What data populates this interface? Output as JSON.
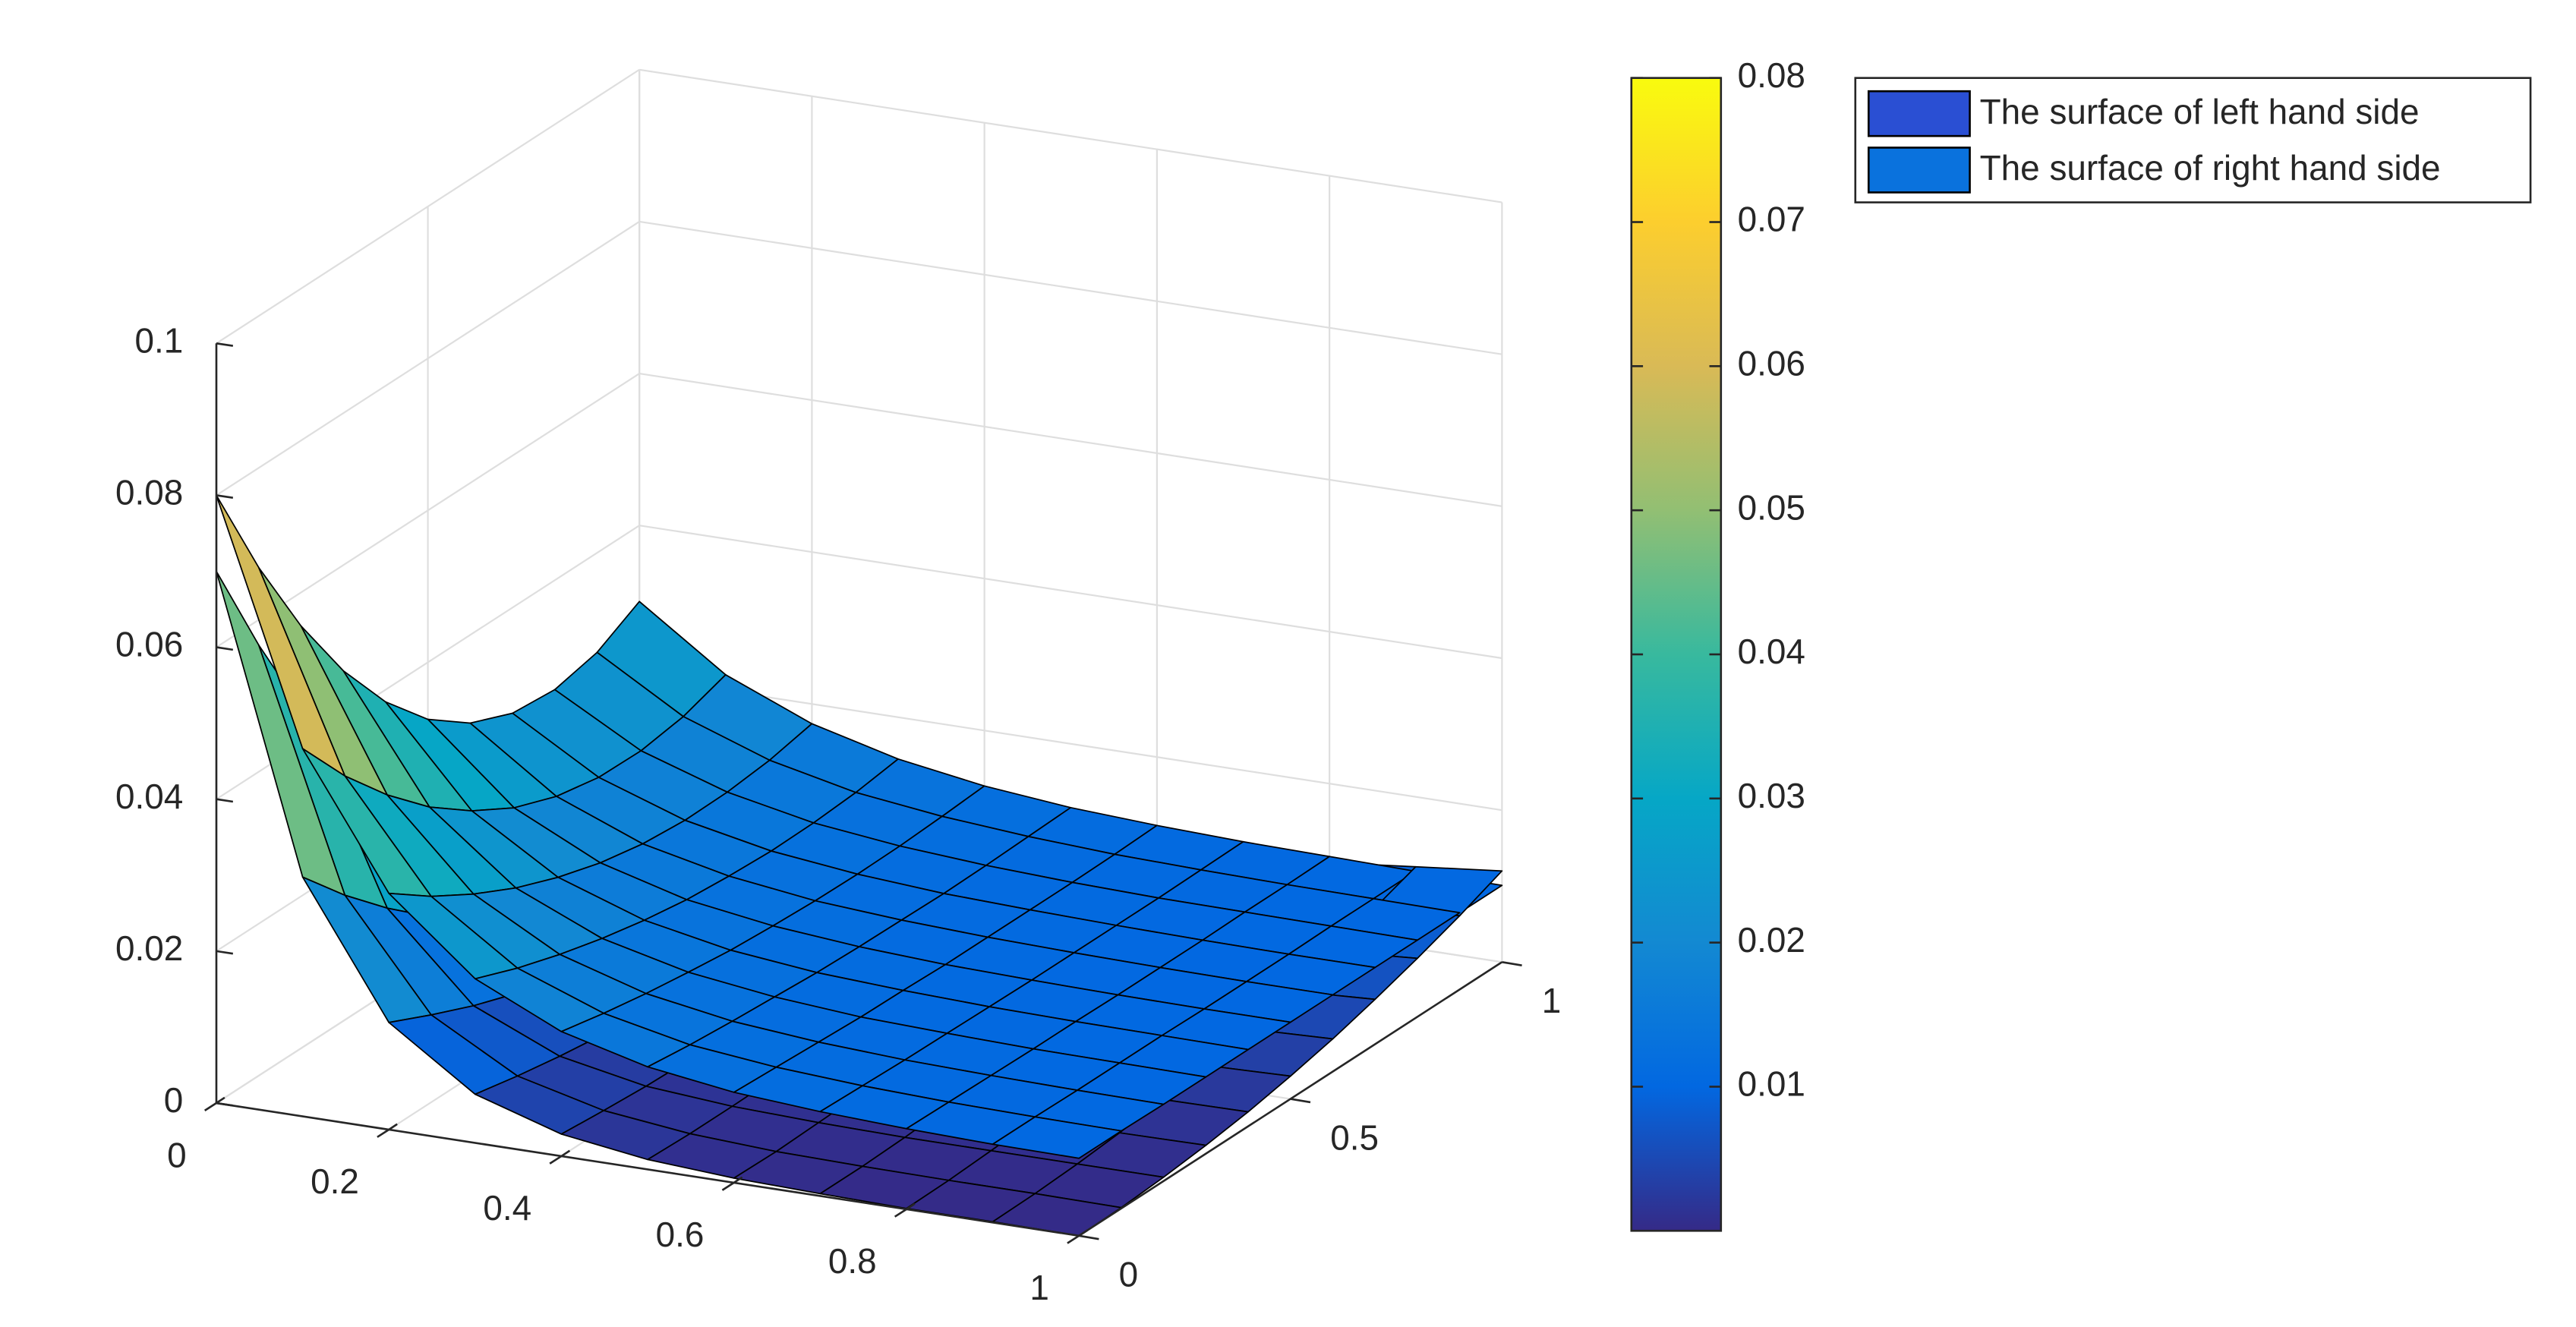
{
  "chart_data": {
    "type": "surface",
    "x": [
      0,
      0.1,
      0.2,
      0.3,
      0.4,
      0.5,
      0.6,
      0.7,
      0.8,
      0.9,
      1
    ],
    "y": [
      0,
      0.1,
      0.2,
      0.3,
      0.4,
      0.5,
      0.6,
      0.7,
      0.8,
      0.9,
      1
    ],
    "series": [
      {
        "name": "The surface of left hand side",
        "color": "#2a4fd3",
        "z": [
          [
            0.07,
            0.0315,
            0.0141,
            0.0064,
            0.0029,
            0.0013,
            0.0006,
            0.0003,
            0.0001,
            0.0001,
            0
          ],
          [
            0.0567,
            0.0255,
            0.0115,
            0.0052,
            0.0024,
            0.0011,
            0.0005,
            0.0003,
            0.0002,
            0.0002,
            0.0001
          ],
          [
            0.0448,
            0.0202,
            0.0091,
            0.0042,
            0.002,
            0.0011,
            0.0007,
            0.0005,
            0.0005,
            0.0005,
            0.0005
          ],
          [
            0.0343,
            0.0155,
            0.0071,
            0.0034,
            0.0018,
            0.0012,
            0.0009,
            0.0009,
            0.0009,
            0.001,
            0.0011
          ],
          [
            0.0252,
            0.0115,
            0.0055,
            0.0029,
            0.0018,
            0.0014,
            0.0014,
            0.0014,
            0.0016,
            0.0018,
            0.0019
          ],
          [
            0.0175,
            0.0082,
            0.0041,
            0.0025,
            0.0019,
            0.0018,
            0.0019,
            0.0022,
            0.0024,
            0.0027,
            0.003
          ],
          [
            0.0112,
            0.0055,
            0.0031,
            0.0023,
            0.0022,
            0.0024,
            0.0027,
            0.0031,
            0.0035,
            0.0039,
            0.0043
          ],
          [
            0.0063,
            0.0034,
            0.0025,
            0.0023,
            0.0026,
            0.0031,
            0.0036,
            0.0041,
            0.0047,
            0.0053,
            0.0059
          ],
          [
            0.0028,
            0.002,
            0.0021,
            0.0026,
            0.0032,
            0.0039,
            0.0046,
            0.0054,
            0.0061,
            0.0069,
            0.0077
          ],
          [
            0.0007,
            0.0013,
            0.0021,
            0.003,
            0.0039,
            0.0049,
            0.0058,
            0.0068,
            0.0078,
            0.0088,
            0.0097
          ],
          [
            0,
            0.0012,
            0.0024,
            0.0036,
            0.0048,
            0.006,
            0.0072,
            0.0084,
            0.0096,
            0.0108,
            0.012
          ]
        ]
      },
      {
        "name": "The surface of right hand side",
        "color": "#0a72dd",
        "z": [
          [
            0.08,
            0.0484,
            0.0311,
            0.0216,
            0.0164,
            0.0135,
            0.0119,
            0.0111,
            0.0106,
            0.0103,
            0.0102
          ],
          [
            0.0669,
            0.0412,
            0.0271,
            0.0194,
            0.0152,
            0.0128,
            0.0116,
            0.0109,
            0.0105,
            0.0103,
            0.0102
          ],
          [
            0.0556,
            0.0351,
            0.0238,
            0.0176,
            0.0142,
            0.0123,
            0.0113,
            0.0107,
            0.0104,
            0.0102,
            0.0101
          ],
          [
            0.0461,
            0.0299,
            0.021,
            0.0161,
            0.0134,
            0.0119,
            0.011,
            0.0106,
            0.0103,
            0.0102,
            0.0101
          ],
          [
            0.0384,
            0.0258,
            0.0188,
            0.0149,
            0.0127,
            0.0115,
            0.0109,
            0.0105,
            0.0103,
            0.0102,
            0.0101
          ],
          [
            0.0325,
            0.0226,
            0.0171,
            0.014,
            0.0123,
            0.0113,
            0.0107,
            0.0104,
            0.0102,
            0.0101,
            0.0101
          ],
          [
            0.0284,
            0.0205,
            0.016,
            0.0135,
            0.012,
            0.0112,
            0.0107,
            0.0104,
            0.0102,
            0.0101,
            0.0101
          ],
          [
            0.0261,
            0.0194,
            0.0155,
            0.0132,
            0.0119,
            0.0111,
            0.0107,
            0.0104,
            0.0102,
            0.0101,
            0.0101
          ],
          [
            0.0256,
            0.0193,
            0.0156,
            0.0133,
            0.012,
            0.0112,
            0.0107,
            0.0104,
            0.0103,
            0.0102,
            0.0101
          ],
          [
            0.0269,
            0.0202,
            0.0162,
            0.0137,
            0.0123,
            0.0114,
            0.0108,
            0.0105,
            0.0103,
            0.0102,
            0.0101
          ],
          [
            0.03,
            0.0221,
            0.0174,
            0.0145,
            0.0127,
            0.0116,
            0.011,
            0.0106,
            0.0104,
            0.0102,
            0.0101
          ]
        ]
      }
    ],
    "xlim": [
      0,
      1
    ],
    "xticks": [
      0,
      0.2,
      0.4,
      0.6,
      0.8,
      1
    ],
    "ylim": [
      0,
      1
    ],
    "yticks": [
      0,
      0.5,
      1
    ],
    "zlim": [
      0,
      0.1
    ],
    "zticks": [
      0,
      0.02,
      0.04,
      0.06,
      0.08,
      0.1
    ],
    "grid": true,
    "colormap": "parula",
    "clim": [
      0,
      0.08
    ],
    "colorbar_ticks": [
      0.01,
      0.02,
      0.03,
      0.04,
      0.05,
      0.06,
      0.07,
      0.08
    ],
    "legend_location": "northeastoutside"
  }
}
